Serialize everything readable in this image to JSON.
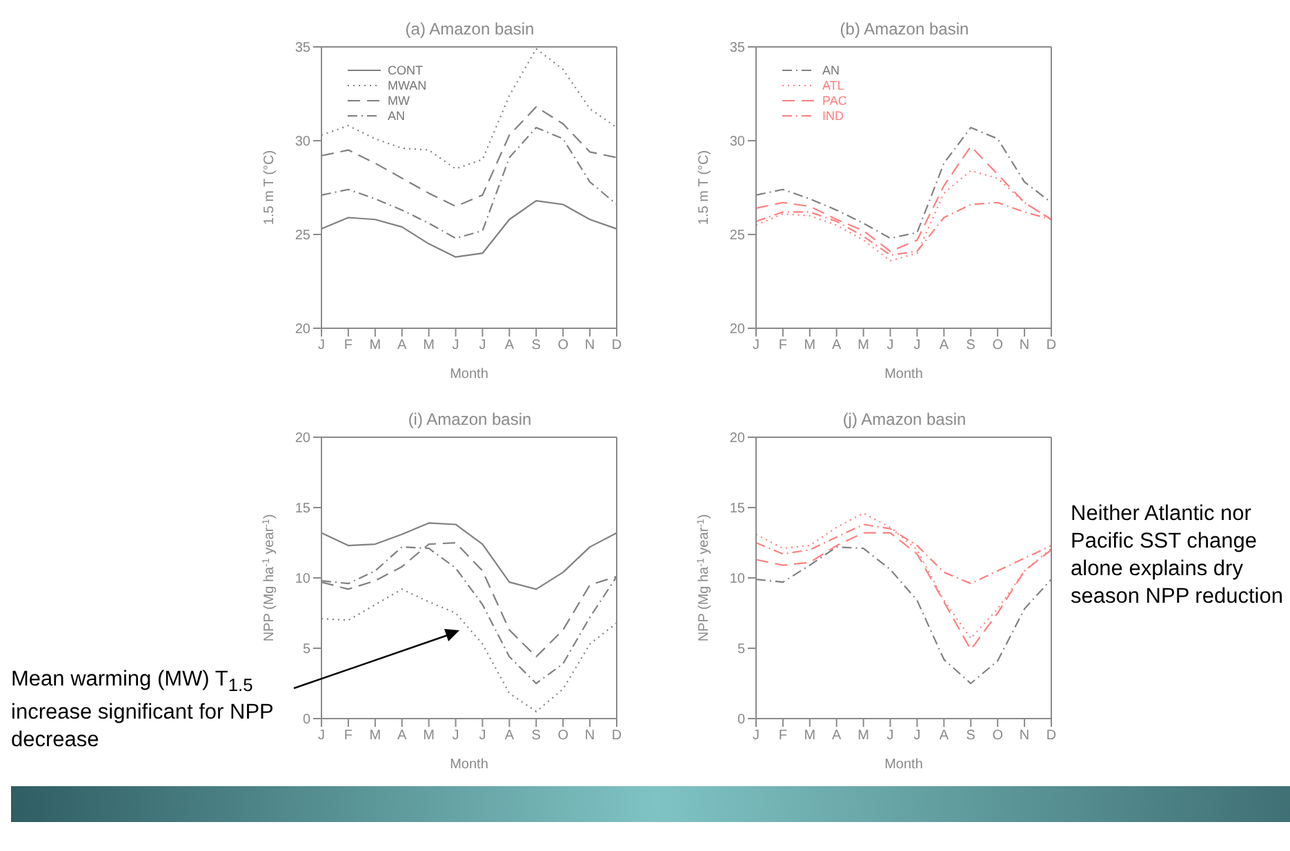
{
  "chart_data": [
    {
      "type": "line",
      "title": "(a) Amazon basin",
      "xlabel": "Month",
      "ylabel": "1.5 m T (°C)",
      "categories": [
        "J",
        "F",
        "M",
        "A",
        "M",
        "J",
        "J",
        "A",
        "S",
        "O",
        "N",
        "D"
      ],
      "ylim": [
        20,
        35
      ],
      "yticks": [
        20,
        25,
        30,
        35
      ],
      "legend": "top left",
      "marker": "none",
      "grid": false,
      "series": [
        {
          "name": "CONT",
          "color": "#808080",
          "line_style": "solid",
          "values": [
            25.3,
            25.9,
            25.8,
            25.4,
            24.5,
            23.8,
            24.0,
            25.8,
            26.8,
            26.6,
            25.8,
            25.3
          ]
        },
        {
          "name": "MWAN",
          "color": "#808080",
          "line_style": "dotted",
          "values": [
            30.3,
            30.8,
            30.1,
            29.6,
            29.5,
            28.5,
            29.0,
            32.4,
            34.9,
            33.8,
            31.7,
            30.7
          ]
        },
        {
          "name": "MW",
          "color": "#808080",
          "line_style": "dashed",
          "values": [
            29.2,
            29.5,
            28.8,
            28.0,
            27.2,
            26.5,
            27.1,
            30.3,
            31.8,
            30.9,
            29.4,
            29.1
          ]
        },
        {
          "name": "AN",
          "color": "#808080",
          "line_style": "dashdot",
          "values": [
            27.1,
            27.4,
            26.9,
            26.3,
            25.6,
            24.8,
            25.2,
            29.1,
            30.7,
            30.1,
            27.8,
            26.6
          ]
        }
      ]
    },
    {
      "type": "line",
      "title": "(b) Amazon basin",
      "xlabel": "Month",
      "ylabel": "1.5 m T (°C)",
      "categories": [
        "J",
        "F",
        "M",
        "A",
        "M",
        "J",
        "J",
        "A",
        "S",
        "O",
        "N",
        "D"
      ],
      "ylim": [
        20,
        35
      ],
      "yticks": [
        20,
        25,
        30,
        35
      ],
      "legend": "top left",
      "marker": "none",
      "grid": false,
      "series": [
        {
          "name": "AN",
          "color": "#808080",
          "line_style": "dashdot",
          "values": [
            27.1,
            27.4,
            26.9,
            26.3,
            25.6,
            24.8,
            25.1,
            28.8,
            30.7,
            30.1,
            27.8,
            26.7
          ]
        },
        {
          "name": "ATL",
          "color": "#ff7f7f",
          "line_style": "dotted",
          "values": [
            25.5,
            26.1,
            26.0,
            25.5,
            24.7,
            23.6,
            24.0,
            27.2,
            28.4,
            28.0,
            26.7,
            25.8
          ]
        },
        {
          "name": "PAC",
          "color": "#ff7f7f",
          "line_style": "dashed",
          "values": [
            26.4,
            26.7,
            26.5,
            25.8,
            25.2,
            24.1,
            24.7,
            27.6,
            29.7,
            28.2,
            26.7,
            25.8
          ]
        },
        {
          "name": "IND",
          "color": "#ff7f7f",
          "line_style": "dashdot",
          "values": [
            25.7,
            26.2,
            26.2,
            25.7,
            24.9,
            23.9,
            24.1,
            25.9,
            26.6,
            26.7,
            26.2,
            25.8
          ]
        }
      ]
    },
    {
      "type": "line",
      "title": "(i) Amazon basin",
      "xlabel": "Month",
      "ylabel": "NPP (Mg ha$^{-1}$ year$^{-1}$)",
      "categories": [
        "J",
        "F",
        "M",
        "A",
        "M",
        "J",
        "J",
        "A",
        "S",
        "O",
        "N",
        "D"
      ],
      "ylim": [
        0,
        20
      ],
      "yticks": [
        0,
        5,
        10,
        15,
        20
      ],
      "marker": "none",
      "grid": false,
      "annotations": [
        "Mean warming (MW) T$_{1.5}$ increase significant for NPP decrease"
      ],
      "series": [
        {
          "color": "#808080",
          "line_style": "solid",
          "values": [
            13.2,
            12.3,
            12.4,
            13.1,
            13.9,
            13.8,
            12.4,
            9.7,
            9.2,
            10.4,
            12.2,
            13.2
          ]
        },
        {
          "color": "#808080",
          "line_style": "dashdot",
          "values": [
            9.8,
            9.6,
            10.5,
            12.2,
            12.1,
            10.7,
            8.1,
            4.4,
            2.5,
            3.9,
            7.2,
            10.1
          ]
        },
        {
          "color": "#808080",
          "line_style": "dashed",
          "values": [
            9.7,
            9.2,
            9.8,
            10.8,
            12.4,
            12.5,
            10.5,
            6.3,
            4.4,
            6.3,
            9.5,
            10.1
          ]
        },
        {
          "color": "#808080",
          "line_style": "dotted",
          "values": [
            7.1,
            7.0,
            8.1,
            9.2,
            8.3,
            7.5,
            5.3,
            1.8,
            0.5,
            2.1,
            5.3,
            6.8
          ]
        }
      ]
    },
    {
      "type": "line",
      "title": "(j) Amazon basin",
      "xlabel": "Month",
      "ylabel": "NPP (Mg ha$^{-1}$ year$^{-1}$)",
      "categories": [
        "J",
        "F",
        "M",
        "A",
        "M",
        "J",
        "J",
        "A",
        "S",
        "O",
        "N",
        "D"
      ],
      "ylim": [
        0,
        20
      ],
      "yticks": [
        0,
        5,
        10,
        15,
        20
      ],
      "marker": "none",
      "grid": false,
      "annotations": [
        "Neither Atlantic nor Pacific SST change alone explains dry season NPP reduction"
      ],
      "series": [
        {
          "color": "#808080",
          "line_style": "dashdot",
          "values": [
            9.9,
            9.7,
            10.9,
            12.2,
            12.1,
            10.6,
            8.4,
            4.2,
            2.5,
            4.1,
            7.8,
            9.9
          ]
        },
        {
          "color": "#ff7f7f",
          "line_style": "dotted",
          "values": [
            13.1,
            12.1,
            12.3,
            13.6,
            14.6,
            13.6,
            12.0,
            8.4,
            5.7,
            7.8,
            10.5,
            12.1
          ]
        },
        {
          "color": "#ff7f7f",
          "line_style": "dashed",
          "values": [
            11.3,
            10.9,
            11.1,
            12.3,
            13.2,
            13.2,
            11.7,
            8.3,
            4.9,
            7.5,
            10.5,
            12.0
          ]
        },
        {
          "color": "#ff7f7f",
          "line_style": "dashdot",
          "values": [
            12.5,
            11.7,
            12.0,
            12.9,
            13.8,
            13.5,
            12.3,
            10.4,
            9.6,
            10.5,
            11.4,
            12.3
          ]
        }
      ]
    }
  ]
}
